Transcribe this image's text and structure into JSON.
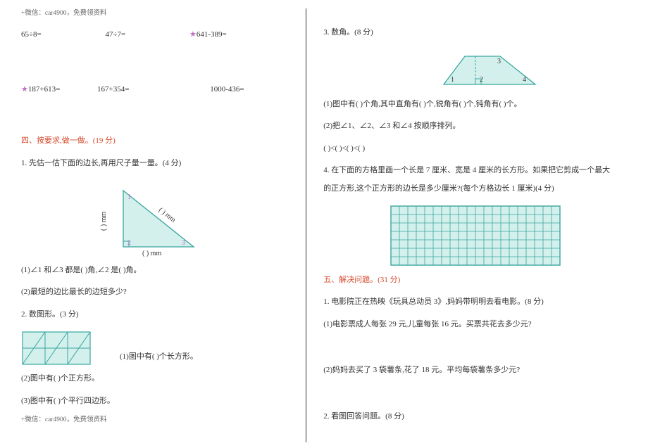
{
  "header_top": "+微信：car4900，免费领资料",
  "footer": "+微信：car4900，免费领资料",
  "left": {
    "row1_a": "65÷8=",
    "row1_b": "47÷7=",
    "row1_c": "641-389=",
    "row2_a": "187+613=",
    "row2_b": "167+354=",
    "row2_c": "1000-436=",
    "sec4_title": "四、按要求,做一做。(19 分)",
    "q1": "1. 先估一估下面的边长,再用尺子量一量。(4 分)",
    "tri": {
      "stroke": "#3aa6a0",
      "fill": "#d4f0ec",
      "label_color": "#333333",
      "num_color": "#c06fc4",
      "labels": {
        "mm_left": "(   ) mm",
        "mm_right": "(   ) mm",
        "mm_bottom": "(   ) mm"
      }
    },
    "q1_1": "(1)∠1 和∠3 都是(     )角,∠2 是(     )角。",
    "q1_2": "(2)最短的边比最长的边短多少?",
    "q2": "2. 数图形。(3 分)",
    "shapegrid": {
      "stroke": "#3aa6a0",
      "fill": "#d4f0ec"
    },
    "q2_1": "(1)图中有(     )个长方形。",
    "q2_2": "(2)图中有(     )个正方形。",
    "q2_3": "(3)图中有(     )个平行四边形。"
  },
  "right": {
    "q3": "3. 数角。(8 分)",
    "trap": {
      "stroke": "#3aa6a0",
      "fill": "#d4f0ec",
      "num_color": "#333333"
    },
    "q3_1": "(1)图中有(     )个角,其中直角有(     )个,锐角有(     )个,钝角有(     )个。",
    "q3_2": "(2)把∠1、∠2、∠3 和∠4 按顺序排列。",
    "q3_3": "(     )<(     )<(     )<(     )",
    "q4a": "4. 在下面的方格里画一个长是 7 厘米、宽是 4 厘米的长方形。如果把它剪成一个最大",
    "q4b": "的正方形,这个正方形的边长是多少厘米?(每个方格边长 1 厘米)(4 分)",
    "grid": {
      "cols": 20,
      "rows": 7,
      "cell": 12,
      "stroke": "#3aa6a0",
      "fill": "#d4f0ec"
    },
    "sec5_title": "五、解决问题。(31 分)",
    "q5_1": "1. 电影院正在热映《玩具总动员 3》,妈妈带明明去看电影。(8 分)",
    "q5_1_1": "(1)电影票成人每张 29 元,儿童每张 16 元。买票共花去多少元?",
    "q5_1_2": "(2)妈妈去买了 3 袋薯条,花了 18 元。平均每袋薯条多少元?",
    "q5_2": "2. 看图回答问题。(8 分)"
  }
}
